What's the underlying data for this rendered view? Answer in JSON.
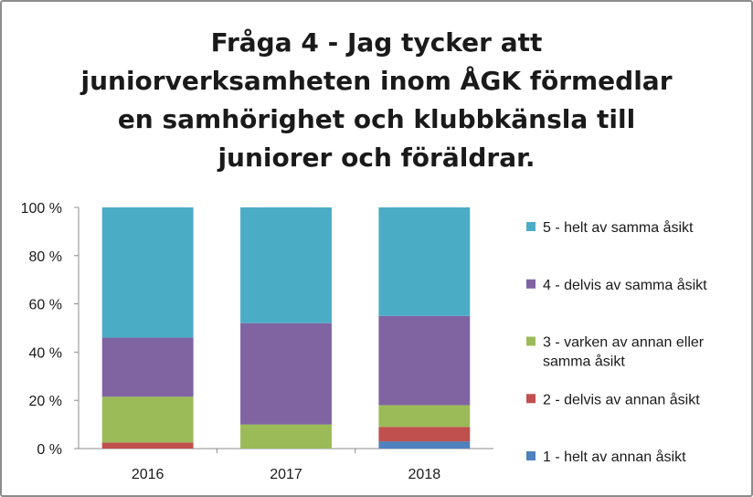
{
  "chart_data": {
    "type": "bar",
    "stacked": true,
    "percent": true,
    "title": "Fråga 4 - Jag tycker att juniorverksamheten inom ÅGK förmedlar en samhörighet och klubbkänsla till juniorer och föräldrar.",
    "title_lines": [
      "Fråga 4 - Jag tycker att",
      "juniorverksamheten inom ÅGK förmedlar",
      "en samhörighet och klubbkänsla till",
      "juniorer och föräldrar."
    ],
    "categories": [
      "2016",
      "2017",
      "2018"
    ],
    "ylim": [
      0,
      100
    ],
    "yticks": [
      "0 %",
      "20 %",
      "40 %",
      "60 %",
      "80 %",
      "100 %"
    ],
    "legend_position": "right",
    "series": [
      {
        "name": "1 - helt av annan åsikt",
        "lines": [
          "1 - helt av annan åsikt"
        ],
        "color": "#4f81bd",
        "values": [
          0,
          0,
          3
        ]
      },
      {
        "name": "2 - delvis av annan åsikt",
        "lines": [
          "2 - delvis av annan åsikt"
        ],
        "color": "#c0504d",
        "values": [
          2.5,
          0,
          6
        ]
      },
      {
        "name": "3 - varken av annan eller samma åsikt",
        "lines": [
          "3 - varken av annan eller",
          "samma åsikt"
        ],
        "color": "#9bbb59",
        "values": [
          19,
          10,
          9
        ]
      },
      {
        "name": "4 - delvis av samma åsikt",
        "lines": [
          "4 - delvis av samma åsikt"
        ],
        "color": "#8064a2",
        "values": [
          24.5,
          42,
          37
        ]
      },
      {
        "name": "5 - helt av samma åsikt",
        "lines": [
          "5 - helt av samma åsikt"
        ],
        "color": "#4bacc6",
        "values": [
          54,
          48,
          45
        ]
      }
    ]
  }
}
